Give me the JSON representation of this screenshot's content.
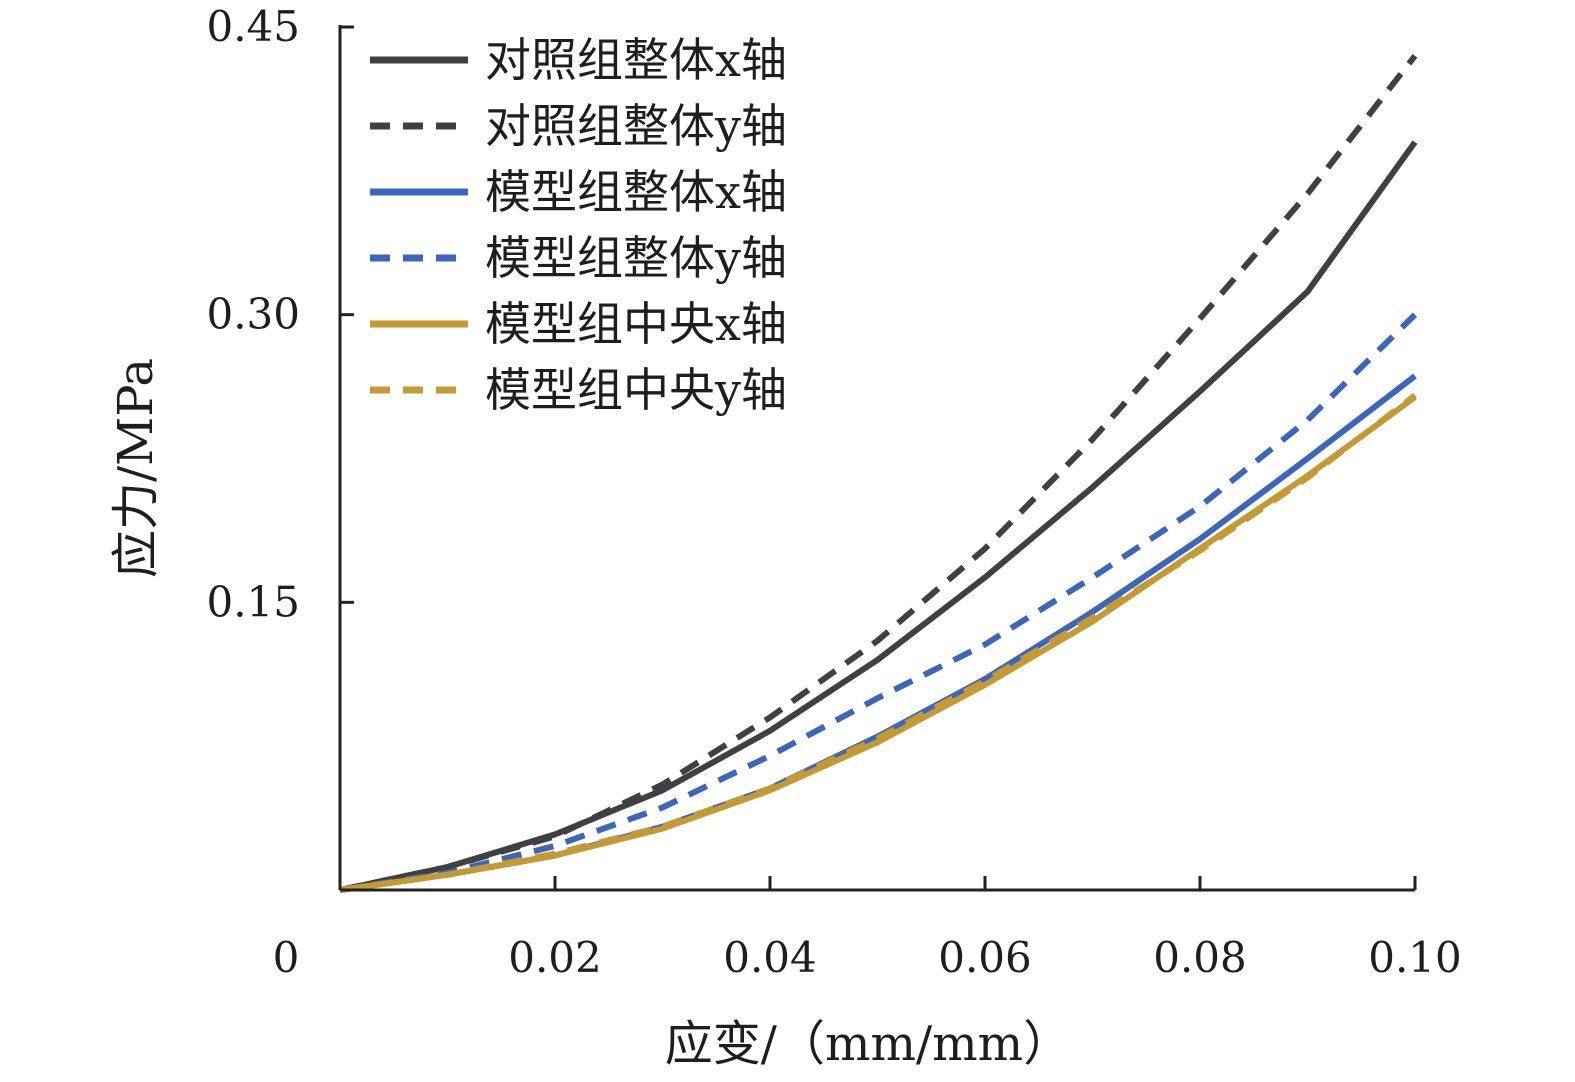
{
  "chart_data": {
    "type": "line",
    "xlabel": "应变/（mm/mm）",
    "ylabel": "应力/MPa",
    "xlim": [
      0,
      0.1
    ],
    "ylim": [
      0,
      0.45
    ],
    "xticks": [
      {
        "value": 0,
        "label": "0"
      },
      {
        "value": 0.02,
        "label": "0.02"
      },
      {
        "value": 0.04,
        "label": "0.04"
      },
      {
        "value": 0.06,
        "label": "0.06"
      },
      {
        "value": 0.08,
        "label": "0.08"
      },
      {
        "value": 0.1,
        "label": "0.10"
      }
    ],
    "yticks": [
      {
        "value": 0.15,
        "label": "0.15"
      },
      {
        "value": 0.3,
        "label": "0.30"
      },
      {
        "value": 0.45,
        "label": "0.45"
      }
    ],
    "grid": false,
    "legend": "top-left",
    "x": [
      0,
      0.01,
      0.02,
      0.03,
      0.04,
      0.05,
      0.06,
      0.07,
      0.08,
      0.09,
      0.1
    ],
    "series": [
      {
        "name": "对照组整体x轴",
        "color": "#404044",
        "dash": "solid",
        "values": [
          0,
          0.012,
          0.029,
          0.052,
          0.083,
          0.12,
          0.163,
          0.21,
          0.26,
          0.312,
          0.39
        ]
      },
      {
        "name": "对照组整体y轴",
        "color": "#404044",
        "dash": "dashed",
        "values": [
          0,
          0.012,
          0.028,
          0.055,
          0.09,
          0.13,
          0.178,
          0.235,
          0.298,
          0.363,
          0.435
        ]
      },
      {
        "name": "模型组整体x轴",
        "color": "#3d66bb",
        "dash": "solid",
        "values": [
          0,
          0.008,
          0.018,
          0.033,
          0.053,
          0.08,
          0.11,
          0.145,
          0.183,
          0.225,
          0.268
        ]
      },
      {
        "name": "模型组整体y轴",
        "color": "#3d66bb",
        "dash": "dashed",
        "values": [
          0,
          0.009,
          0.023,
          0.043,
          0.07,
          0.1,
          0.128,
          0.163,
          0.2,
          0.245,
          0.3
        ]
      },
      {
        "name": "模型组中央x轴",
        "color": "#c39a33",
        "dash": "solid",
        "values": [
          0,
          0.008,
          0.018,
          0.032,
          0.052,
          0.077,
          0.107,
          0.14,
          0.178,
          0.216,
          0.257
        ]
      },
      {
        "name": "模型组中央y轴",
        "color": "#c39a33",
        "dash": "dashed",
        "values": [
          0,
          0.008,
          0.019,
          0.033,
          0.053,
          0.079,
          0.109,
          0.142,
          0.177,
          0.215,
          0.258
        ]
      }
    ]
  }
}
